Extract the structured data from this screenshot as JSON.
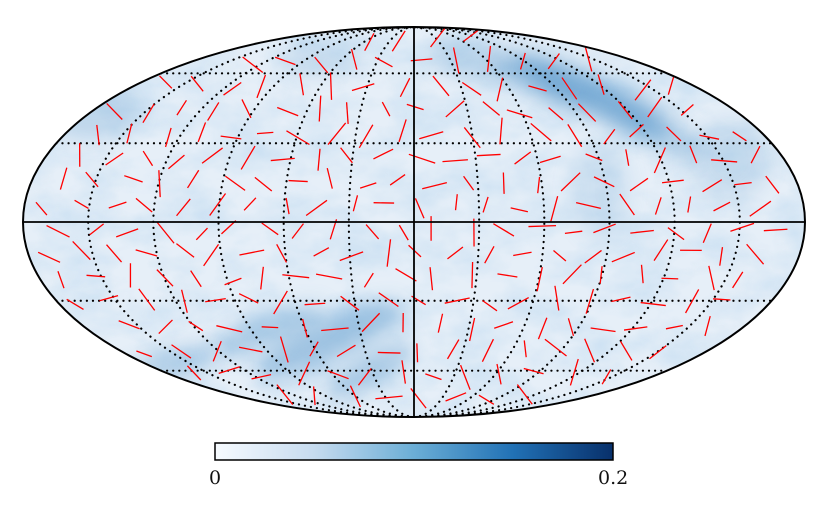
{
  "projection": "mollweide",
  "colormap": {
    "name": "Blues",
    "low_color": "#f7fbff",
    "high_color": "#08306b",
    "min_label": "0",
    "max_label": "0.2"
  },
  "graticule": {
    "meridian_spacing_deg": 30,
    "parallel_spacing_deg": 30,
    "style": "dotted",
    "color": "#000000"
  },
  "polarization_vectors": {
    "color": "#ff0000",
    "description_visible": false
  }
}
